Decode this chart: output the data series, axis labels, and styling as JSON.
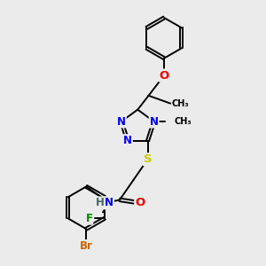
{
  "bg_color": "#ebebeb",
  "bond_color": "#000000",
  "bond_width": 1.4,
  "atom_colors": {
    "N": "#0000ee",
    "O": "#ee0000",
    "S": "#cccc00",
    "Br": "#cc6600",
    "F": "#008800",
    "H": "#446666",
    "C": "#000000"
  },
  "font_size": 8.5,
  "title": ""
}
